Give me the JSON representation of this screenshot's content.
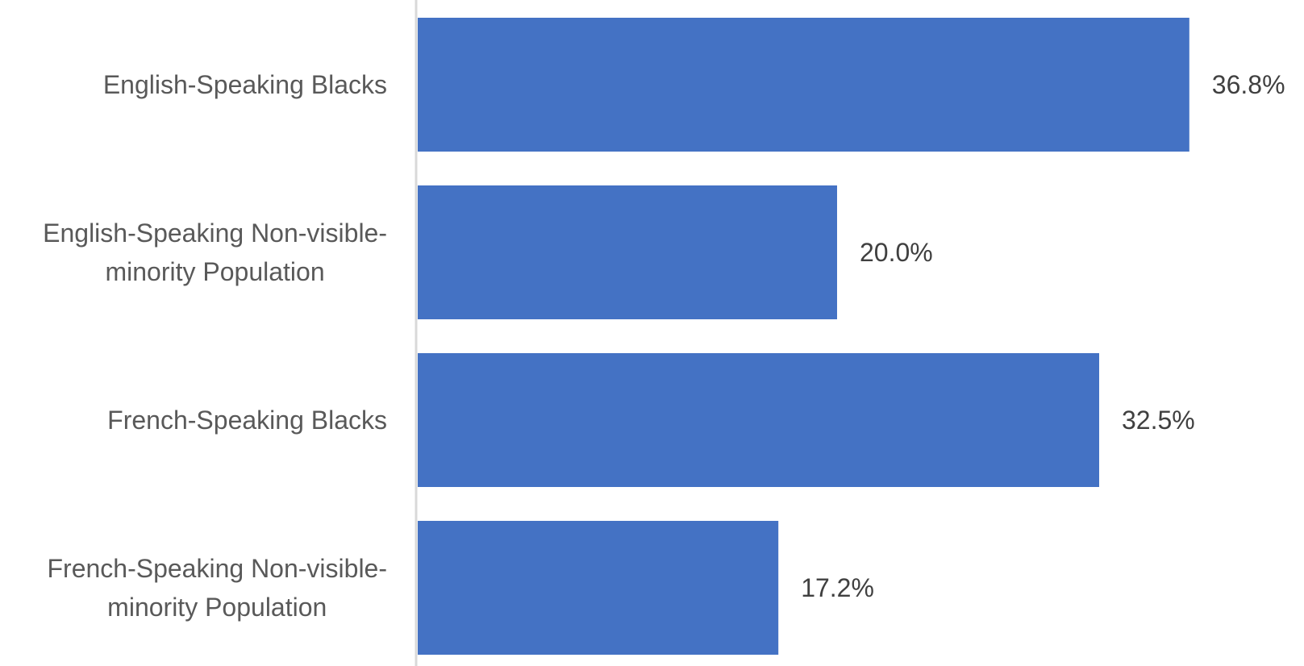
{
  "chart_data": {
    "type": "bar",
    "orientation": "horizontal",
    "categories": [
      [
        "English-Speaking Blacks"
      ],
      [
        "English-Speaking Non-visible-",
        "minority Population"
      ],
      [
        "French-Speaking Blacks"
      ],
      [
        "French-Speaking Non-visible-",
        "minority Population"
      ]
    ],
    "values": [
      36.8,
      20.0,
      32.5,
      17.2
    ],
    "value_labels": [
      "36.8%",
      "20.0%",
      "32.5%",
      "17.2%"
    ],
    "xlim": [
      0,
      37
    ],
    "bar_color": "#4472C4",
    "axis_color": "#D9D9D9",
    "grid": false,
    "legend": "none"
  }
}
